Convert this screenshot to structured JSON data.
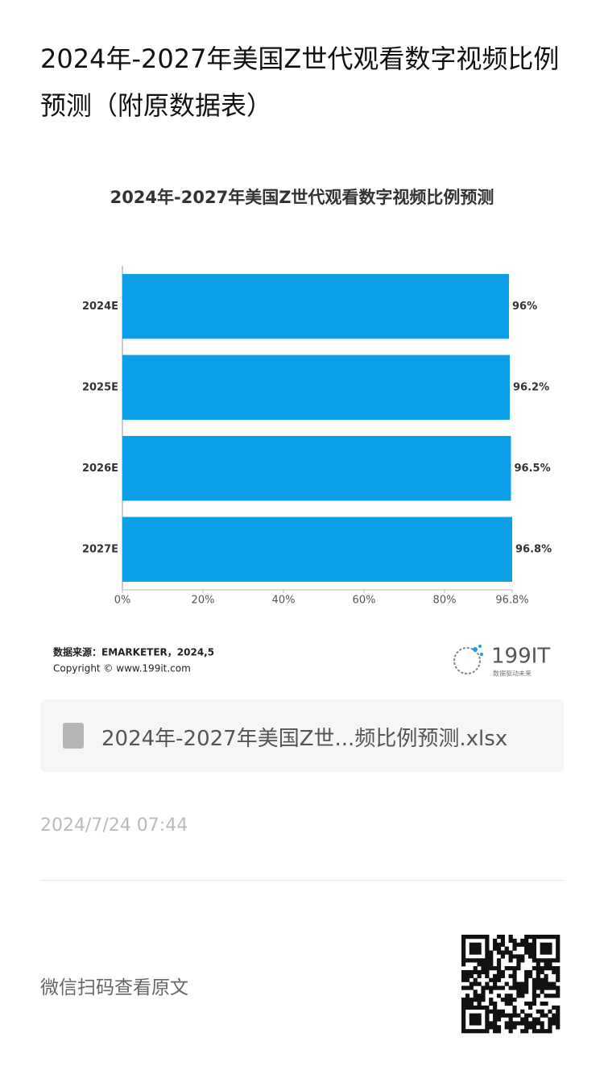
{
  "header": {
    "title": "2024年-2027年美国Z世代观看数字视频比例预测（附原数据表）"
  },
  "chart_data": {
    "type": "hbar",
    "title": "2024年-2027年美国Z世代观看数字视频比例预测",
    "categories": [
      "2024E",
      "2025E",
      "2026E",
      "2027E"
    ],
    "values": [
      96,
      96.2,
      96.5,
      96.8
    ],
    "value_labels": [
      "96%",
      "96.2%",
      "96.5%",
      "96.8%"
    ],
    "color": "#0a9fe6",
    "xlim": [
      0,
      96.8
    ],
    "xticks": [
      {
        "value": 0,
        "label": "0%"
      },
      {
        "value": 20,
        "label": "20%"
      },
      {
        "value": 40,
        "label": "40%"
      },
      {
        "value": 60,
        "label": "60%"
      },
      {
        "value": 80,
        "label": "80%"
      },
      {
        "value": 96.8,
        "label": "96.8%"
      }
    ]
  },
  "source": "数据来源：EMARKETER，2024,5",
  "copyright": "Copyright © www.199it.com",
  "logo": {
    "name": "199IT",
    "slogan": "数据驱动未来"
  },
  "attachment": "2024年-2027年美国Z世...频比例预测.xlsx",
  "date": "2024/7/24 07:44",
  "footer": "微信扫码查看原文"
}
